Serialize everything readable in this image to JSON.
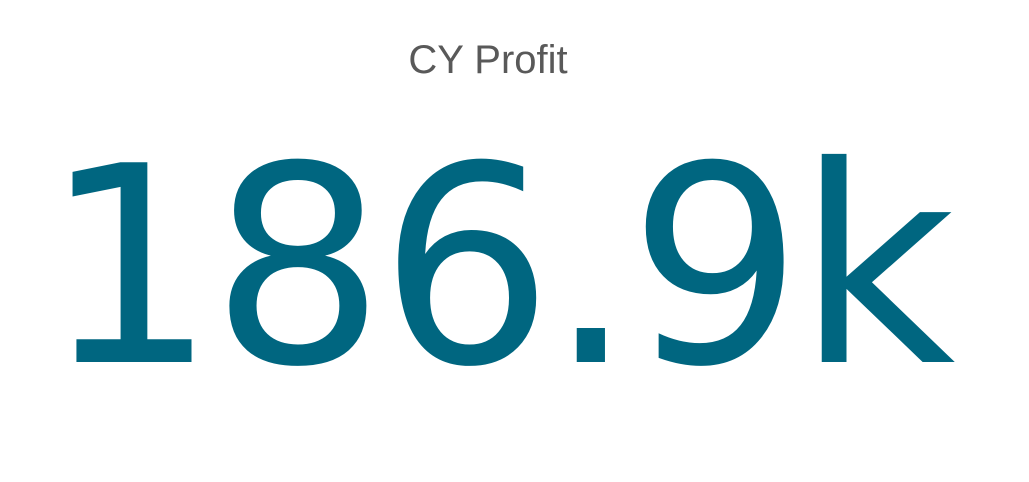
{
  "chart_data": {
    "type": "table",
    "title": "CY Profit",
    "value": 186900,
    "display_value": "186.9k"
  },
  "colors": {
    "title": "#595959",
    "value": "#006680",
    "background": "#ffffff"
  }
}
